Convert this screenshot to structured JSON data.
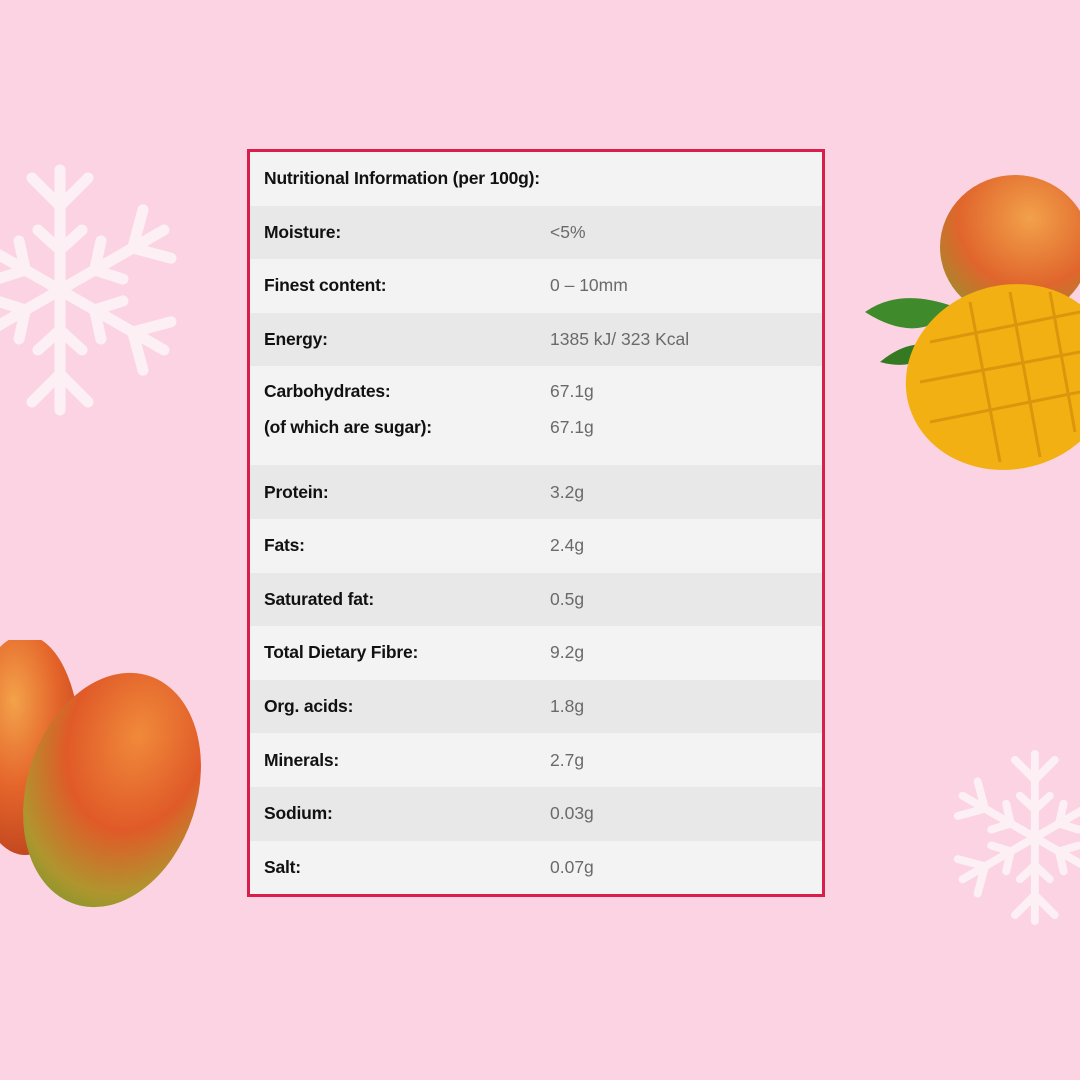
{
  "colors": {
    "background": "#fbd3e2",
    "border": "#d91e4b",
    "row_light": "#f3f3f3",
    "row_dark": "#e8e8e8"
  },
  "table": {
    "title": "Nutritional Information (per 100g):",
    "rows": [
      {
        "label": "Moisture:",
        "value": "<5%"
      },
      {
        "label": "Finest content:",
        "value": " 0 – 10mm"
      },
      {
        "label": "Energy:",
        "value": "1385 kJ/ 323 Kcal"
      },
      {
        "label": "Carbohydrates:",
        "value": "67.1g",
        "sub_label": "(of which are sugar):",
        "sub_value": "67.1g"
      },
      {
        "label": "Protein:",
        "value": "3.2g"
      },
      {
        "label": "Fats:",
        "value": "2.4g"
      },
      {
        "label": "Saturated fat:",
        "value": "0.5g"
      },
      {
        "label": "Total Dietary Fibre:",
        "value": "9.2g"
      },
      {
        "label": "Org. acids:",
        "value": "1.8g"
      },
      {
        "label": "Minerals:",
        "value": "2.7g"
      },
      {
        "label": "Sodium:",
        "value": "0.03g"
      },
      {
        "label": "Salt:",
        "value": "0.07g"
      }
    ]
  },
  "decorations": [
    "snowflake-icon",
    "mango-image",
    "snowflake-icon",
    "mango-image"
  ]
}
